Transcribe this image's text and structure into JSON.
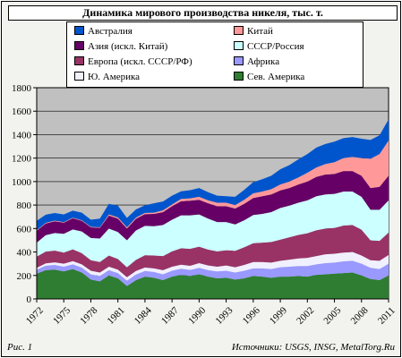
{
  "chart_data": {
    "type": "area",
    "stacked": true,
    "title": "Динамика мирового производства никеля, тыс. т.",
    "xlabel": "",
    "ylabel": "",
    "ylim": [
      0,
      1800
    ],
    "yticks": [
      0,
      200,
      400,
      600,
      800,
      1000,
      1200,
      1400,
      1600,
      1800
    ],
    "x": [
      1972,
      1973,
      1974,
      1975,
      1976,
      1977,
      1978,
      1979,
      1980,
      1981,
      1982,
      1983,
      1984,
      1985,
      1986,
      1987,
      1988,
      1989,
      1990,
      1991,
      1992,
      1993,
      1994,
      1995,
      1996,
      1997,
      1998,
      1999,
      2000,
      2001,
      2002,
      2003,
      2004,
      2005,
      2006,
      2007,
      2008,
      2009,
      2010,
      2011
    ],
    "xtick_labels": [
      "1972",
      "1975",
      "1978",
      "1981",
      "1984",
      "1987",
      "1990",
      "1993",
      "1996",
      "1999",
      "2002",
      "2005",
      "2008",
      "2011"
    ],
    "grid": true,
    "plot_background": "#c0c0c0",
    "series": [
      {
        "name": "Сев. Америка",
        "color": "#2e7d32",
        "values": [
          215,
          245,
          250,
          235,
          255,
          225,
          165,
          150,
          200,
          175,
          110,
          160,
          190,
          180,
          160,
          190,
          205,
          195,
          210,
          190,
          175,
          180,
          165,
          175,
          195,
          190,
          180,
          190,
          190,
          195,
          190,
          205,
          210,
          215,
          220,
          225,
          200,
          170,
          160,
          200
        ]
      },
      {
        "name": "Африка",
        "color": "#9999ff",
        "values": [
          35,
          38,
          40,
          40,
          40,
          42,
          45,
          45,
          45,
          45,
          45,
          48,
          48,
          50,
          50,
          50,
          52,
          52,
          55,
          55,
          60,
          60,
          60,
          65,
          65,
          70,
          75,
          80,
          85,
          85,
          90,
          90,
          95,
          95,
          100,
          100,
          100,
          95,
          95,
          100
        ]
      },
      {
        "name": "Ю. Америка",
        "color": "#f0f0ff",
        "values": [
          15,
          20,
          22,
          25,
          27,
          28,
          30,
          30,
          30,
          30,
          30,
          30,
          30,
          30,
          35,
          35,
          35,
          35,
          40,
          40,
          40,
          45,
          45,
          50,
          55,
          55,
          55,
          55,
          60,
          65,
          70,
          70,
          75,
          75,
          75,
          75,
          70,
          65,
          70,
          75
        ]
      },
      {
        "name": "Европа (искл. СССР/РФ)",
        "color": "#993366",
        "values": [
          95,
          100,
          100,
          95,
          100,
          95,
          90,
          90,
          95,
          90,
          85,
          95,
          105,
          110,
          120,
          130,
          140,
          145,
          140,
          135,
          130,
          130,
          140,
          150,
          160,
          165,
          175,
          180,
          190,
          200,
          210,
          220,
          220,
          220,
          230,
          230,
          220,
          170,
          170,
          190
        ]
      },
      {
        "name": "СССР/Россия",
        "color": "#ccffff",
        "values": [
          120,
          140,
          150,
          160,
          170,
          185,
          190,
          200,
          230,
          230,
          230,
          250,
          250,
          250,
          265,
          270,
          280,
          285,
          275,
          265,
          250,
          240,
          225,
          230,
          240,
          245,
          255,
          270,
          270,
          275,
          280,
          290,
          290,
          290,
          290,
          285,
          280,
          260,
          265,
          275
        ]
      },
      {
        "name": "Азия (искл. Китай)",
        "color": "#660066",
        "values": [
          100,
          100,
          100,
          95,
          95,
          90,
          90,
          90,
          110,
          115,
          100,
          100,
          100,
          105,
          110,
          115,
          120,
          125,
          125,
          130,
          135,
          135,
          135,
          140,
          145,
          150,
          150,
          150,
          150,
          155,
          160,
          165,
          170,
          170,
          175,
          175,
          180,
          185,
          195,
          210
        ]
      },
      {
        "name": "Китай",
        "color": "#ff9999",
        "values": [
          5,
          5,
          5,
          5,
          5,
          5,
          5,
          5,
          10,
          10,
          10,
          10,
          10,
          10,
          15,
          15,
          20,
          20,
          25,
          25,
          30,
          30,
          30,
          35,
          40,
          40,
          45,
          50,
          55,
          60,
          75,
          80,
          90,
          100,
          110,
          120,
          150,
          250,
          280,
          300
        ]
      },
      {
        "name": "Австралия",
        "color": "#0055cc",
        "values": [
          80,
          70,
          65,
          65,
          60,
          65,
          60,
          75,
          90,
          100,
          80,
          70,
          65,
          80,
          75,
          75,
          65,
          70,
          75,
          70,
          60,
          55,
          70,
          85,
          95,
          105,
          115,
          130,
          140,
          155,
          160,
          170,
          170,
          175,
          170,
          170,
          165,
          160,
          160,
          180
        ]
      }
    ]
  },
  "legend_layout": [
    [
      "Австралия",
      "Китай"
    ],
    [
      "Азия (искл. Китай)",
      "СССР/Россия"
    ],
    [
      "Европа (искл. СССР/РФ)",
      "Африка"
    ],
    [
      "Ю. Америка",
      "Сев. Америка"
    ]
  ],
  "footer": {
    "figure_label": "Рис. 1",
    "sources": "Источники: USGS, INSG, MetalTorg.Ru"
  }
}
